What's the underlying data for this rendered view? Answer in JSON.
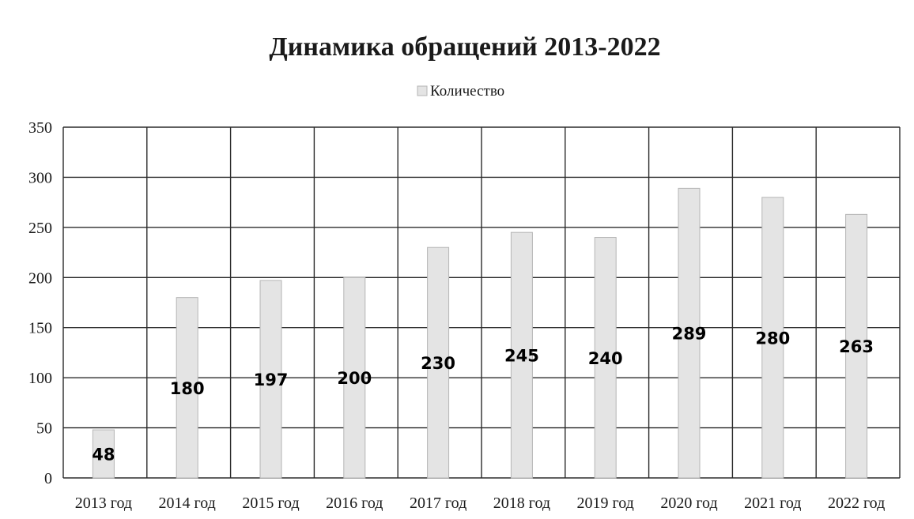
{
  "chart_data": {
    "type": "bar",
    "title": "Динамика обращений 2013-2022",
    "legend_position": "top-center",
    "series": [
      {
        "name": "Количество",
        "values": [
          48,
          180,
          197,
          200,
          230,
          245,
          240,
          289,
          280,
          263
        ]
      }
    ],
    "categories": [
      "2013 год",
      "2014 год",
      "2015 год",
      "2016 год",
      "2017 год",
      "2018 год",
      "2019 год",
      "2020 год",
      "2021 год",
      "2022 год"
    ],
    "data_labels": [
      "48",
      "180",
      "197",
      "200",
      "230",
      "245",
      "240",
      "289",
      "280",
      "263"
    ],
    "ylim": [
      0,
      350
    ],
    "yticks": [
      0,
      50,
      100,
      150,
      200,
      250,
      300,
      350
    ],
    "ytick_labels": [
      "0",
      "50",
      "100",
      "150",
      "200",
      "250",
      "300",
      "350"
    ],
    "grid": true,
    "colors": {
      "bar_fill": "#e4e4e4",
      "bar_stroke": "#b5b5b5",
      "grid": "#2b2b2b",
      "text": "#1a1a1a"
    }
  }
}
